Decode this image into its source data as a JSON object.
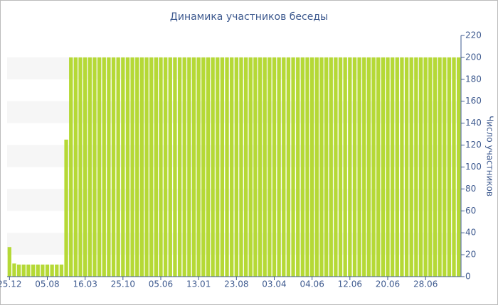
{
  "chart_data": {
    "type": "bar",
    "title": "Динамика участников беседы",
    "y_axis_label": "Число участников",
    "categories": [
      "25.12",
      null,
      null,
      null,
      null,
      null,
      null,
      null,
      "05.08",
      null,
      null,
      null,
      null,
      null,
      null,
      null,
      "16.03",
      null,
      null,
      null,
      null,
      null,
      null,
      null,
      "25.10",
      null,
      null,
      null,
      null,
      null,
      null,
      null,
      "05.06",
      null,
      null,
      null,
      null,
      null,
      null,
      null,
      "13.01",
      null,
      null,
      null,
      null,
      null,
      null,
      null,
      "23.08",
      null,
      null,
      null,
      null,
      null,
      null,
      null,
      "03.04",
      null,
      null,
      null,
      null,
      null,
      null,
      null,
      "04.06",
      null,
      null,
      null,
      null,
      null,
      null,
      null,
      "12.06",
      null,
      null,
      null,
      null,
      null,
      null,
      null,
      "20.06",
      null,
      null,
      null,
      null,
      null,
      null,
      null,
      "28.06",
      null,
      null,
      null,
      null,
      null,
      null,
      null
    ],
    "values": [
      27,
      12,
      11,
      11,
      11,
      11,
      11,
      11,
      11,
      11,
      11,
      11,
      125,
      200,
      200,
      200,
      200,
      200,
      200,
      200,
      200,
      200,
      200,
      200,
      200,
      200,
      200,
      200,
      200,
      200,
      200,
      200,
      200,
      200,
      200,
      200,
      200,
      200,
      200,
      200,
      200,
      200,
      200,
      200,
      200,
      200,
      200,
      200,
      200,
      200,
      200,
      200,
      200,
      200,
      200,
      200,
      200,
      200,
      200,
      200,
      200,
      200,
      200,
      200,
      200,
      200,
      200,
      200,
      200,
      200,
      200,
      200,
      200,
      200,
      200,
      200,
      200,
      200,
      200,
      200,
      200,
      200,
      200,
      200,
      200,
      200,
      200,
      200,
      200,
      200,
      200,
      200,
      200,
      200,
      200,
      200
    ],
    "color": "#b5d936",
    "ylim": [
      0,
      220
    ],
    "yticks": [
      0,
      20,
      40,
      60,
      80,
      100,
      120,
      140,
      160,
      180,
      200,
      220
    ],
    "grid": "bands",
    "y_axis_side": "right"
  }
}
